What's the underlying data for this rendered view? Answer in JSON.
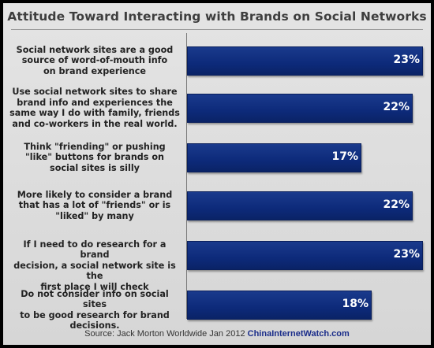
{
  "chart_data": {
    "type": "bar",
    "title": "Attitude Toward Interacting with Brands on Social Networks",
    "orientation": "horizontal",
    "categories": [
      "Social network sites are a good source of word-of-mouth info on brand experience",
      "Use social network sites to share brand info and experiences the same way I do with family, friends and co-workers in the real world.",
      "Think \"friending\" or pushing \"like\" buttons for brands on social sites is silly",
      "More likely to consider a brand that has a lot of \"friends\" or is \"liked\" by many",
      "If I need to do research for a brand decision, a social network site is the first place I will check",
      "Do not consider info on social sites to be good research for brand decisions."
    ],
    "label_lines": [
      [
        "Social network sites are a good",
        "source of word-of-mouth info",
        "on brand experience"
      ],
      [
        "Use social network sites to share",
        "brand info and experiences the",
        "same way I do with family, friends",
        "and co-workers in the real world."
      ],
      [
        "Think \"friending\" or pushing",
        "\"like\" buttons for brands on",
        "social sites is silly"
      ],
      [
        "More likely to consider a brand",
        "that has a lot of \"friends\" or is",
        "\"liked\" by many"
      ],
      [
        "If I need to do research for a brand",
        "decision, a social network site is the",
        "first place I will check"
      ],
      [
        "Do not consider info on social sites",
        "to be good research for brand",
        "decisions."
      ]
    ],
    "values": [
      23,
      22,
      17,
      22,
      23,
      18
    ],
    "value_labels": [
      "23%",
      "22%",
      "17%",
      "22%",
      "23%",
      "18%"
    ],
    "xlim": [
      0,
      23
    ],
    "grid": false,
    "bar_color": "#0d2a7a"
  },
  "source": {
    "text": "Source: Jack Morton Worldwide Jan 2012",
    "site": "ChinaInternetWatch.com"
  }
}
